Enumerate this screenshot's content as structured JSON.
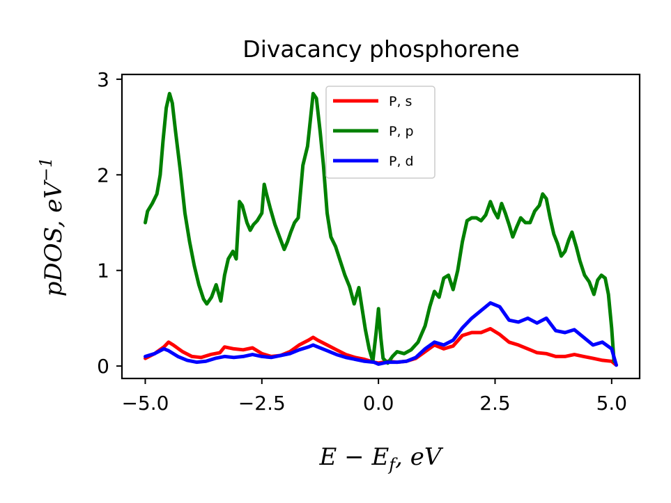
{
  "chart_data": {
    "type": "line",
    "title": "Divacancy phosphorene",
    "xlabel": "E − E_f, eV",
    "ylabel": "pDOS, eV^-1",
    "xlabel_main": "E − E",
    "xlabel_sub": "f",
    "xlabel_tail": ", eV",
    "ylabel_main": "pDOS, eV",
    "ylabel_sup": "−1",
    "xlim": [
      -5.5,
      5.6
    ],
    "ylim": [
      -0.13,
      3.05
    ],
    "x_ticks": [
      -5.0,
      -2.5,
      0.0,
      2.5,
      5.0
    ],
    "x_tick_labels": [
      "−5.0",
      "−2.5",
      "0.0",
      "2.5",
      "5.0"
    ],
    "y_ticks": [
      0,
      1,
      2,
      3
    ],
    "y_tick_labels": [
      "0",
      "1",
      "2",
      "3"
    ],
    "grid": false,
    "legend_position": "top-center",
    "series": [
      {
        "name": "P, s",
        "color": "#ff0000",
        "points": [
          [
            -5.0,
            0.08
          ],
          [
            -4.8,
            0.13
          ],
          [
            -4.6,
            0.2
          ],
          [
            -4.5,
            0.25
          ],
          [
            -4.4,
            0.22
          ],
          [
            -4.2,
            0.15
          ],
          [
            -4.0,
            0.1
          ],
          [
            -3.8,
            0.09
          ],
          [
            -3.6,
            0.12
          ],
          [
            -3.4,
            0.14
          ],
          [
            -3.3,
            0.2
          ],
          [
            -3.1,
            0.18
          ],
          [
            -2.9,
            0.17
          ],
          [
            -2.7,
            0.19
          ],
          [
            -2.5,
            0.13
          ],
          [
            -2.3,
            0.1
          ],
          [
            -2.1,
            0.11
          ],
          [
            -1.9,
            0.15
          ],
          [
            -1.7,
            0.22
          ],
          [
            -1.5,
            0.27
          ],
          [
            -1.4,
            0.3
          ],
          [
            -1.3,
            0.27
          ],
          [
            -1.1,
            0.22
          ],
          [
            -0.9,
            0.17
          ],
          [
            -0.7,
            0.12
          ],
          [
            -0.5,
            0.09
          ],
          [
            -0.3,
            0.07
          ],
          [
            -0.1,
            0.04
          ],
          [
            0.0,
            0.03
          ],
          [
            0.2,
            0.05
          ],
          [
            0.4,
            0.04
          ],
          [
            0.6,
            0.05
          ],
          [
            0.8,
            0.08
          ],
          [
            1.0,
            0.15
          ],
          [
            1.2,
            0.22
          ],
          [
            1.4,
            0.18
          ],
          [
            1.6,
            0.21
          ],
          [
            1.8,
            0.32
          ],
          [
            2.0,
            0.35
          ],
          [
            2.2,
            0.35
          ],
          [
            2.4,
            0.39
          ],
          [
            2.6,
            0.33
          ],
          [
            2.8,
            0.25
          ],
          [
            3.0,
            0.22
          ],
          [
            3.2,
            0.18
          ],
          [
            3.4,
            0.14
          ],
          [
            3.6,
            0.13
          ],
          [
            3.8,
            0.1
          ],
          [
            4.0,
            0.1
          ],
          [
            4.2,
            0.12
          ],
          [
            4.4,
            0.1
          ],
          [
            4.6,
            0.08
          ],
          [
            4.8,
            0.06
          ],
          [
            5.0,
            0.05
          ],
          [
            5.1,
            0.01
          ]
        ]
      },
      {
        "name": "P, p",
        "color": "#008000",
        "points": [
          [
            -5.0,
            1.5
          ],
          [
            -4.95,
            1.62
          ],
          [
            -4.85,
            1.7
          ],
          [
            -4.75,
            1.8
          ],
          [
            -4.68,
            2.0
          ],
          [
            -4.62,
            2.35
          ],
          [
            -4.55,
            2.7
          ],
          [
            -4.48,
            2.85
          ],
          [
            -4.42,
            2.75
          ],
          [
            -4.35,
            2.45
          ],
          [
            -4.25,
            2.05
          ],
          [
            -4.15,
            1.6
          ],
          [
            -4.05,
            1.3
          ],
          [
            -3.95,
            1.05
          ],
          [
            -3.85,
            0.85
          ],
          [
            -3.75,
            0.7
          ],
          [
            -3.68,
            0.65
          ],
          [
            -3.58,
            0.72
          ],
          [
            -3.48,
            0.85
          ],
          [
            -3.38,
            0.68
          ],
          [
            -3.3,
            0.95
          ],
          [
            -3.22,
            1.12
          ],
          [
            -3.12,
            1.2
          ],
          [
            -3.05,
            1.12
          ],
          [
            -2.98,
            1.72
          ],
          [
            -2.92,
            1.68
          ],
          [
            -2.82,
            1.5
          ],
          [
            -2.75,
            1.42
          ],
          [
            -2.68,
            1.48
          ],
          [
            -2.6,
            1.52
          ],
          [
            -2.5,
            1.6
          ],
          [
            -2.45,
            1.9
          ],
          [
            -2.4,
            1.8
          ],
          [
            -2.32,
            1.65
          ],
          [
            -2.22,
            1.48
          ],
          [
            -2.12,
            1.35
          ],
          [
            -2.02,
            1.22
          ],
          [
            -1.95,
            1.3
          ],
          [
            -1.88,
            1.4
          ],
          [
            -1.8,
            1.5
          ],
          [
            -1.72,
            1.55
          ],
          [
            -1.62,
            2.1
          ],
          [
            -1.52,
            2.3
          ],
          [
            -1.45,
            2.62
          ],
          [
            -1.4,
            2.85
          ],
          [
            -1.33,
            2.8
          ],
          [
            -1.25,
            2.45
          ],
          [
            -1.18,
            2.1
          ],
          [
            -1.1,
            1.6
          ],
          [
            -1.02,
            1.35
          ],
          [
            -0.92,
            1.25
          ],
          [
            -0.82,
            1.1
          ],
          [
            -0.72,
            0.95
          ],
          [
            -0.62,
            0.83
          ],
          [
            -0.52,
            0.65
          ],
          [
            -0.42,
            0.82
          ],
          [
            -0.35,
            0.6
          ],
          [
            -0.28,
            0.38
          ],
          [
            -0.2,
            0.18
          ],
          [
            -0.12,
            0.05
          ],
          [
            -0.05,
            0.35
          ],
          [
            0.0,
            0.6
          ],
          [
            0.05,
            0.3
          ],
          [
            0.1,
            0.08
          ],
          [
            0.2,
            0.03
          ],
          [
            0.3,
            0.1
          ],
          [
            0.4,
            0.15
          ],
          [
            0.55,
            0.13
          ],
          [
            0.7,
            0.17
          ],
          [
            0.85,
            0.25
          ],
          [
            1.0,
            0.42
          ],
          [
            1.1,
            0.62
          ],
          [
            1.2,
            0.78
          ],
          [
            1.3,
            0.72
          ],
          [
            1.4,
            0.92
          ],
          [
            1.5,
            0.95
          ],
          [
            1.6,
            0.8
          ],
          [
            1.7,
            1.0
          ],
          [
            1.8,
            1.3
          ],
          [
            1.9,
            1.52
          ],
          [
            2.0,
            1.55
          ],
          [
            2.1,
            1.55
          ],
          [
            2.2,
            1.52
          ],
          [
            2.3,
            1.58
          ],
          [
            2.4,
            1.72
          ],
          [
            2.48,
            1.62
          ],
          [
            2.56,
            1.55
          ],
          [
            2.64,
            1.7
          ],
          [
            2.72,
            1.6
          ],
          [
            2.8,
            1.48
          ],
          [
            2.88,
            1.35
          ],
          [
            2.96,
            1.45
          ],
          [
            3.05,
            1.55
          ],
          [
            3.15,
            1.5
          ],
          [
            3.25,
            1.5
          ],
          [
            3.35,
            1.62
          ],
          [
            3.45,
            1.68
          ],
          [
            3.52,
            1.8
          ],
          [
            3.6,
            1.75
          ],
          [
            3.68,
            1.55
          ],
          [
            3.76,
            1.38
          ],
          [
            3.84,
            1.28
          ],
          [
            3.92,
            1.15
          ],
          [
            4.0,
            1.2
          ],
          [
            4.08,
            1.32
          ],
          [
            4.15,
            1.4
          ],
          [
            4.24,
            1.25
          ],
          [
            4.32,
            1.1
          ],
          [
            4.42,
            0.95
          ],
          [
            4.52,
            0.88
          ],
          [
            4.62,
            0.75
          ],
          [
            4.7,
            0.9
          ],
          [
            4.78,
            0.95
          ],
          [
            4.86,
            0.92
          ],
          [
            4.93,
            0.75
          ],
          [
            5.0,
            0.4
          ],
          [
            5.05,
            0.05
          ]
        ]
      },
      {
        "name": "P, d",
        "color": "#0000ff",
        "points": [
          [
            -5.0,
            0.1
          ],
          [
            -4.8,
            0.13
          ],
          [
            -4.6,
            0.18
          ],
          [
            -4.5,
            0.16
          ],
          [
            -4.3,
            0.1
          ],
          [
            -4.1,
            0.06
          ],
          [
            -3.9,
            0.04
          ],
          [
            -3.7,
            0.05
          ],
          [
            -3.5,
            0.08
          ],
          [
            -3.3,
            0.1
          ],
          [
            -3.1,
            0.09
          ],
          [
            -2.9,
            0.1
          ],
          [
            -2.7,
            0.12
          ],
          [
            -2.5,
            0.1
          ],
          [
            -2.3,
            0.09
          ],
          [
            -2.1,
            0.11
          ],
          [
            -1.9,
            0.13
          ],
          [
            -1.7,
            0.17
          ],
          [
            -1.5,
            0.2
          ],
          [
            -1.4,
            0.22
          ],
          [
            -1.3,
            0.2
          ],
          [
            -1.1,
            0.16
          ],
          [
            -0.9,
            0.12
          ],
          [
            -0.7,
            0.09
          ],
          [
            -0.5,
            0.07
          ],
          [
            -0.3,
            0.05
          ],
          [
            -0.1,
            0.04
          ],
          [
            0.0,
            0.02
          ],
          [
            0.2,
            0.04
          ],
          [
            0.4,
            0.04
          ],
          [
            0.6,
            0.05
          ],
          [
            0.8,
            0.09
          ],
          [
            1.0,
            0.18
          ],
          [
            1.2,
            0.25
          ],
          [
            1.4,
            0.22
          ],
          [
            1.6,
            0.27
          ],
          [
            1.8,
            0.4
          ],
          [
            2.0,
            0.5
          ],
          [
            2.2,
            0.58
          ],
          [
            2.4,
            0.66
          ],
          [
            2.6,
            0.62
          ],
          [
            2.8,
            0.48
          ],
          [
            3.0,
            0.46
          ],
          [
            3.2,
            0.5
          ],
          [
            3.4,
            0.45
          ],
          [
            3.6,
            0.5
          ],
          [
            3.8,
            0.37
          ],
          [
            4.0,
            0.35
          ],
          [
            4.2,
            0.38
          ],
          [
            4.4,
            0.3
          ],
          [
            4.6,
            0.22
          ],
          [
            4.8,
            0.25
          ],
          [
            5.0,
            0.18
          ],
          [
            5.1,
            0.01
          ]
        ]
      }
    ]
  }
}
